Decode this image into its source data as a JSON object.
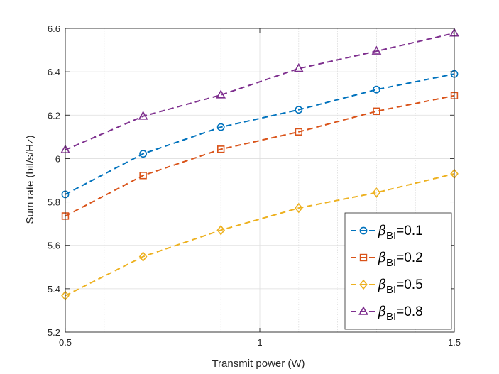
{
  "chart_data": {
    "type": "line",
    "title": "",
    "xlabel": "Transmit power (W)",
    "ylabel": "Sum rate (bit/s/Hz)",
    "xlim": [
      0.5,
      1.5
    ],
    "ylim": [
      5.2,
      6.6
    ],
    "x_ticks": [
      0.5,
      1,
      1.5
    ],
    "x_tick_labels": [
      "0.5",
      "1",
      "1.5"
    ],
    "y_ticks": [
      5.2,
      5.4,
      5.6,
      5.8,
      6.0,
      6.2,
      6.4,
      6.6
    ],
    "y_tick_labels": [
      "5.2",
      "5.4",
      "5.6",
      "5.8",
      "6",
      "6.2",
      "6.4",
      "6.6"
    ],
    "x_minor_ticks": [
      0.6,
      0.7,
      0.8,
      0.9,
      1.1,
      1.2,
      1.3,
      1.4
    ],
    "grid": true,
    "legend_position": "bottom-right",
    "x": [
      0.5,
      0.7,
      0.9,
      1.1,
      1.3,
      1.5
    ],
    "series": [
      {
        "name": "β_BI=0.1",
        "beta": "β",
        "sub": "BI",
        "value_label": "=0.1",
        "color": "#0072BD",
        "marker": "circle",
        "values": [
          5.835,
          6.022,
          6.145,
          6.225,
          6.318,
          6.39
        ]
      },
      {
        "name": "β_BI=0.2",
        "beta": "β",
        "sub": "BI",
        "value_label": "=0.2",
        "color": "#D95319",
        "marker": "square",
        "values": [
          5.735,
          5.922,
          6.043,
          6.123,
          6.218,
          6.29
        ]
      },
      {
        "name": "β_BI=0.5",
        "beta": "β",
        "sub": "BI",
        "value_label": "=0.5",
        "color": "#EDB120",
        "marker": "diamond",
        "values": [
          5.368,
          5.548,
          5.67,
          5.772,
          5.843,
          5.93
        ]
      },
      {
        "name": "β_BI=0.8",
        "beta": "β",
        "sub": "BI",
        "value_label": "=0.8",
        "color": "#7E2F8E",
        "marker": "triangle",
        "values": [
          6.04,
          6.195,
          6.293,
          6.415,
          6.495,
          6.578
        ]
      }
    ]
  }
}
